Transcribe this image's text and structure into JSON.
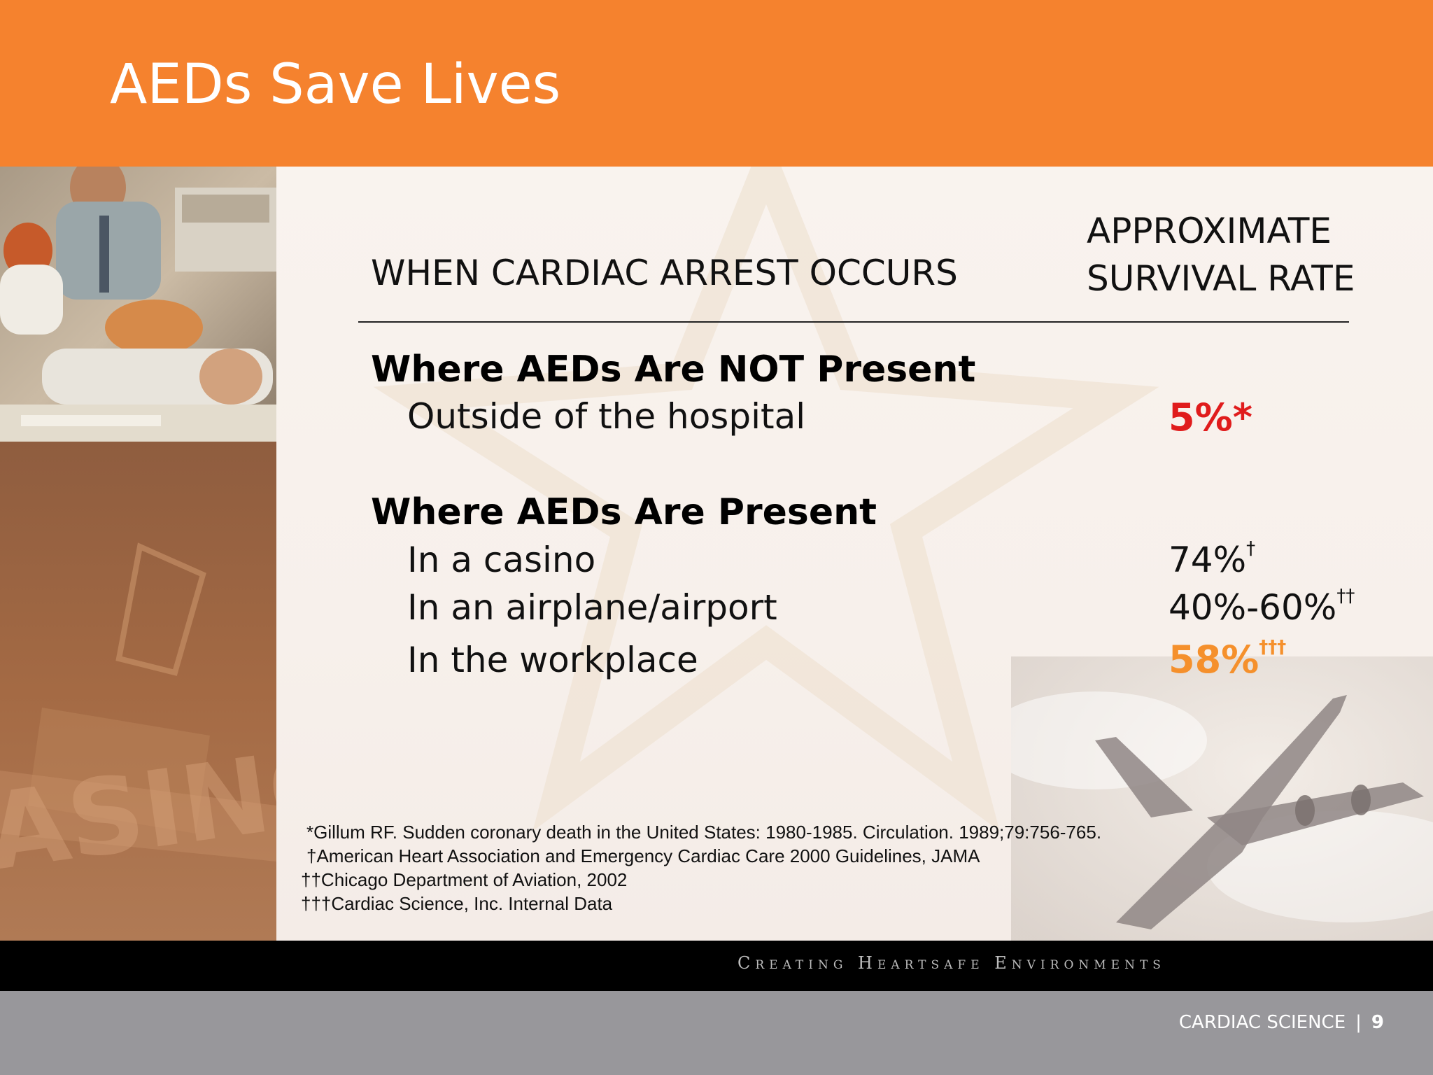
{
  "slide": {
    "title": "AEDs Save Lives",
    "column_headers": {
      "left": "WHEN CARDIAC ARREST OCCURS",
      "right_line1": "APPROXIMATE",
      "right_line2": "SURVIVAL RATE"
    },
    "sections": [
      {
        "heading": "Where AEDs Are NOT Present",
        "rows": [
          {
            "label": "Outside of the hospital",
            "rate": "5%",
            "mark": "*"
          }
        ]
      },
      {
        "heading": "Where AEDs Are Present",
        "rows": [
          {
            "label": "In a casino",
            "rate": "74%",
            "mark": "†"
          },
          {
            "label": "In an airplane/airport",
            "rate": "40%-60%",
            "mark": "††"
          },
          {
            "label": "In the workplace",
            "rate": "58%",
            "mark": "†††"
          }
        ]
      }
    ],
    "footnotes": [
      "*Gillum RF. Sudden coronary death in the United States: 1980-1985. Circulation. 1989;79:756-765.",
      "†American Heart Association and Emergency Cardiac Care 2000 Guidelines, JAMA",
      "††Chicago Department of Aviation, 2002",
      "†††Cardiac Science, Inc. Internal Data"
    ],
    "tagline": "Creating Heartsafe Environments",
    "footer": {
      "company": "CARDIAC SCIENCE",
      "separator": "|",
      "page_number": "9"
    },
    "colors": {
      "header": "#f5822e",
      "highlight_red": "#e01c1c",
      "highlight_orange": "#f5902c",
      "footer_bar": "#98979b"
    }
  }
}
